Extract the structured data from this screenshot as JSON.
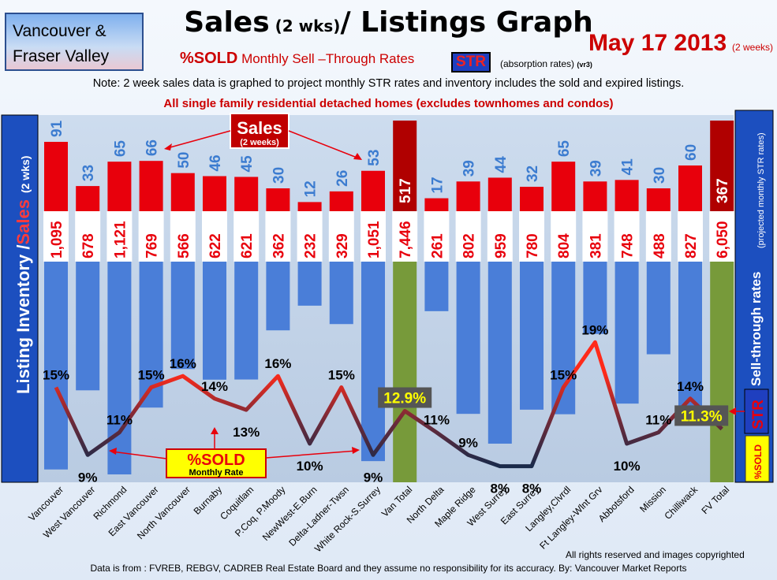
{
  "region": [
    "Vancouver &",
    "Fraser Valley"
  ],
  "title_main": "Sales",
  "title_small": " (2 wks)",
  "title_rest": "/ Listings Graph",
  "date": "May 17 2013",
  "date_note": "(2 weeks)",
  "subtitle_a": "%SOLD",
  "subtitle_b": " Monthly Sell –Through Rates",
  "str_badge": "STR",
  "absorption": "(absorption rates)",
  "absorption_ver": "(vr3)",
  "note": "Note: 2 week sales data is graphed to project monthly STR rates and inventory includes the sold and expired listings.",
  "note2": "All single family residential detached homes (excludes townhomes and condos)",
  "left_axis_label_a": "Listing Inventory /",
  "left_axis_label_b": "Sales",
  "left_axis_label_c": "(2 wks)",
  "right_axis_label": "Sell-through rates",
  "right_axis_note": "(projected monthly STR rates)",
  "sales_callout": "Sales",
  "sales_callout_sub": "(2 weeks)",
  "sold_callout": "%SOLD",
  "sold_callout_sub": "Monthly Rate",
  "legend_str": "STR",
  "legend_sold": "%SOLD",
  "footer_rights": "All rights reserved and  images copyrighted",
  "footer_source": "Data is from : FVREB, REBGV, CADREB Real Estate Board and they assume no responsibility for its accuracy. By: Vancouver Market Reports",
  "colors": {
    "sales": "#e8000c",
    "inventory": "#4a7ed8",
    "total": "#779a3a",
    "total_sales": "#b00000",
    "str_line_high": "#ff2a1a",
    "str_line_low": "#1a2a4a"
  },
  "chart_data": {
    "type": "bar",
    "categories": [
      "Vancouver",
      "West Vancouver",
      "Richmond",
      "East Vancouver",
      "North Vancouver",
      "Burnaby",
      "Coquitlam",
      "P.Coq, P.Moody",
      "NewWest-E.Burn",
      "Delta-Ladner-Twsn",
      "White Rock-S.Surrey",
      "Van Total",
      "North Delta",
      "Maple Ridge",
      "West Surrey",
      "East Surrey",
      "Langley,Clvrdl",
      "Ft Langley-Wlnt Grv",
      "Abbotsford",
      "Mission",
      "Chilliwack",
      "FV Total"
    ],
    "series": [
      {
        "name": "Sales",
        "values": [
          91,
          33,
          65,
          66,
          50,
          46,
          45,
          30,
          12,
          26,
          53,
          517,
          17,
          39,
          44,
          32,
          65,
          39,
          41,
          30,
          60,
          367
        ]
      },
      {
        "name": "Listing Inventory",
        "values": [
          1095,
          678,
          1121,
          769,
          566,
          622,
          621,
          362,
          232,
          329,
          1051,
          7446,
          261,
          802,
          959,
          780,
          804,
          381,
          748,
          488,
          827,
          6050
        ],
        "labels": [
          "1,095",
          "678",
          "1,121",
          "769",
          "566",
          "622",
          "621",
          "362",
          "232",
          "329",
          "1,051",
          "7,446",
          "261",
          "802",
          "959",
          "780",
          "804",
          "381",
          "748",
          "488",
          "827",
          "6,050"
        ]
      },
      {
        "name": "%SOLD",
        "values": [
          15,
          9,
          11,
          15,
          16,
          14,
          13,
          16,
          10,
          15,
          9,
          12.9,
          11,
          9,
          8,
          8,
          15,
          19,
          10,
          11,
          14,
          11.3
        ],
        "labels": [
          "15%",
          "9%",
          "11%",
          "15%",
          "16%",
          "14%",
          "13%",
          "16%",
          "10%",
          "15%",
          "9%",
          "12.9%",
          "11%",
          "9%",
          "8%",
          "8%",
          "15%",
          "19%",
          "10%",
          "11%",
          "14%",
          "11.3%"
        ]
      }
    ],
    "totals": [
      "Van Total",
      "FV Total"
    ]
  }
}
